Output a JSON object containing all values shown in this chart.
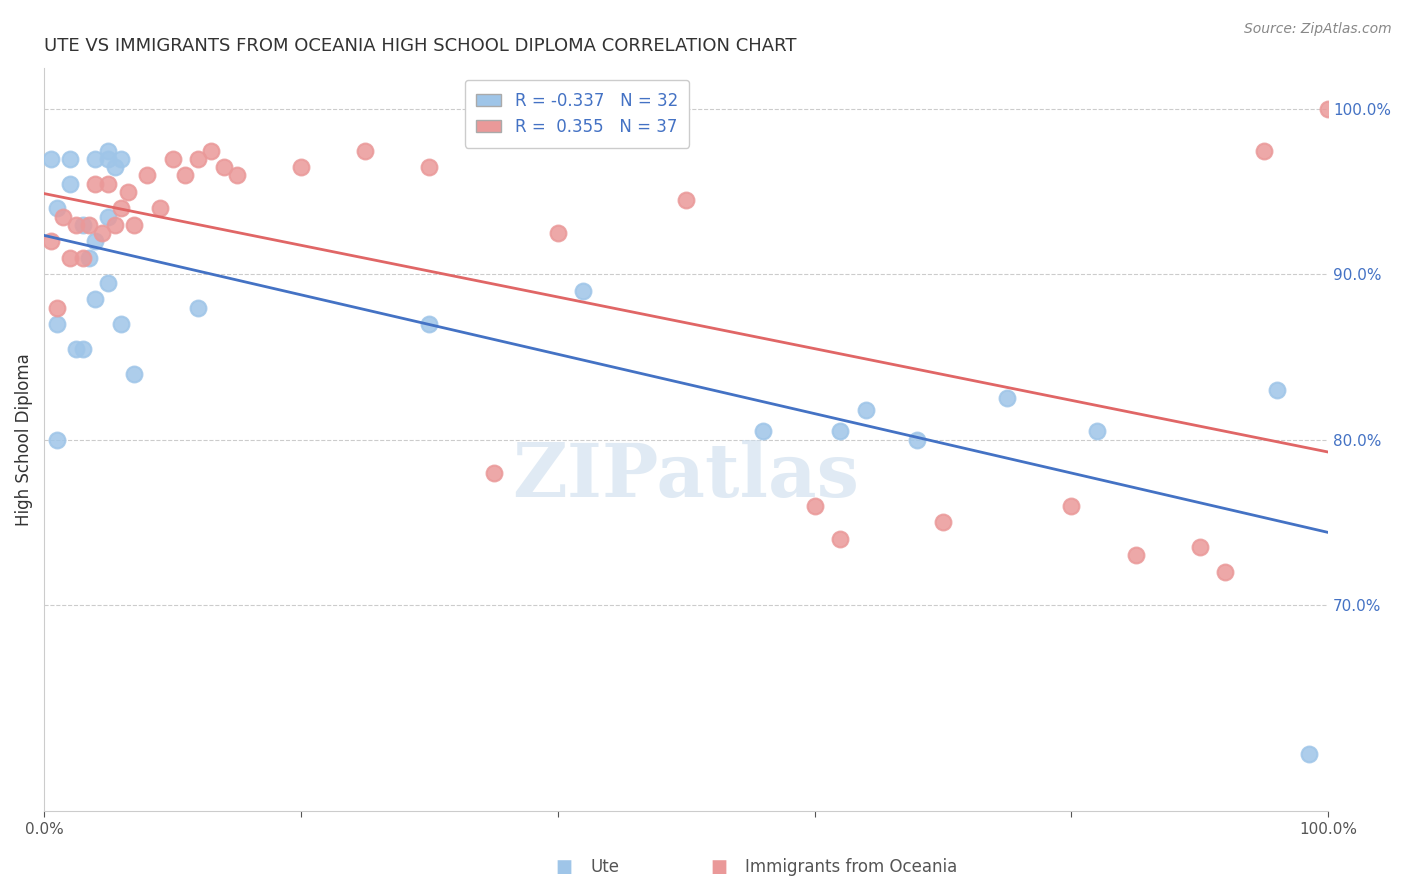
{
  "title": "UTE VS IMMIGRANTS FROM OCEANIA HIGH SCHOOL DIPLOMA CORRELATION CHART",
  "source": "Source: ZipAtlas.com",
  "ylabel": "High School Diploma",
  "ylabel_right_ticks": [
    "100.0%",
    "90.0%",
    "80.0%",
    "70.0%"
  ],
  "ylabel_right_vals": [
    1.0,
    0.9,
    0.8,
    0.7
  ],
  "legend_r_blue": "-0.337",
  "legend_n_blue": "32",
  "legend_r_pink": "0.355",
  "legend_n_pink": "37",
  "watermark": "ZIPatlas",
  "blue_color": "#9fc5e8",
  "pink_color": "#ea9999",
  "blue_line_color": "#4472c4",
  "pink_line_color": "#e06666",
  "ute_x": [
    0.005,
    0.02,
    0.04,
    0.05,
    0.05,
    0.055,
    0.06,
    0.02,
    0.01,
    0.03,
    0.01,
    0.03,
    0.035,
    0.04,
    0.05,
    0.06,
    0.07,
    0.12,
    0.3,
    0.42,
    0.56,
    0.62,
    0.64,
    0.68,
    0.75,
    0.82,
    0.96,
    0.985,
    0.01,
    0.025,
    0.04,
    0.05
  ],
  "ute_y": [
    0.97,
    0.97,
    0.97,
    0.975,
    0.97,
    0.965,
    0.97,
    0.955,
    0.94,
    0.93,
    0.87,
    0.855,
    0.91,
    0.92,
    0.895,
    0.87,
    0.84,
    0.88,
    0.87,
    0.89,
    0.805,
    0.805,
    0.818,
    0.8,
    0.825,
    0.805,
    0.83,
    0.61,
    0.8,
    0.855,
    0.885,
    0.935
  ],
  "oceania_x": [
    0.005,
    0.01,
    0.015,
    0.02,
    0.025,
    0.03,
    0.035,
    0.04,
    0.045,
    0.05,
    0.055,
    0.06,
    0.065,
    0.07,
    0.08,
    0.09,
    0.1,
    0.11,
    0.12,
    0.13,
    0.14,
    0.15,
    0.2,
    0.25,
    0.3,
    0.35,
    0.4,
    0.5,
    0.6,
    0.62,
    0.7,
    0.8,
    0.85,
    0.9,
    0.92,
    0.95,
    1.0
  ],
  "oceania_y": [
    0.92,
    0.88,
    0.935,
    0.91,
    0.93,
    0.91,
    0.93,
    0.955,
    0.925,
    0.955,
    0.93,
    0.94,
    0.95,
    0.93,
    0.96,
    0.94,
    0.97,
    0.96,
    0.97,
    0.975,
    0.965,
    0.96,
    0.965,
    0.975,
    0.965,
    0.78,
    0.925,
    0.945,
    0.76,
    0.74,
    0.75,
    0.76,
    0.73,
    0.735,
    0.72,
    0.975,
    1.0
  ],
  "xmin": 0.0,
  "xmax": 1.0,
  "ymin": 0.575,
  "ymax": 1.025
}
